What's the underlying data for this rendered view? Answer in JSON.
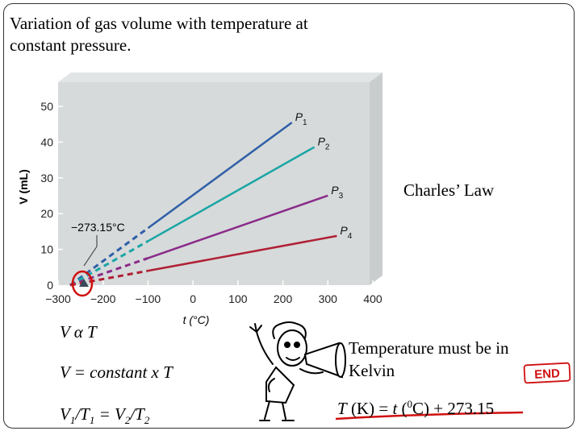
{
  "slide": {
    "title": "Variation of gas volume with temperature at constant pressure.",
    "law_label": "Charles’ Law",
    "proportionality": "V α T",
    "constant_form": "V = constant x T",
    "ratio_form": {
      "v1": "V",
      "s1": "1",
      "slash1": "/T",
      "s2": "1",
      "eq": " = V",
      "s3": "2",
      "slash2": "/T",
      "s4": "2"
    },
    "note": "Temperature must be in Kelvin",
    "conversion": {
      "left": "T",
      "unit": " (K) = ",
      "t": "t",
      "paren": " (",
      "sup": "0",
      "right": "C) + 273.15"
    },
    "end_stamp": "END"
  },
  "chart_data": {
    "type": "line",
    "xlabel": "t (°C)",
    "ylabel": "V (mL)",
    "xlim": [
      -300,
      400
    ],
    "ylim": [
      0,
      50
    ],
    "xticks": [
      -300,
      -200,
      -100,
      0,
      100,
      200,
      300,
      400
    ],
    "yticks": [
      0,
      10,
      20,
      30,
      40,
      50
    ],
    "xtick_labels": [
      "−300",
      "−200",
      "−100",
      "0",
      "100",
      "200",
      "300",
      "400"
    ],
    "ytick_labels": [
      "0",
      "10",
      "20",
      "30",
      "40",
      "50"
    ],
    "grid": true,
    "annotation": "−273.15°C",
    "absolute_zero": -273.15,
    "series": [
      {
        "name": "P1",
        "label_main": "P",
        "label_sub": "1",
        "color": "#2f5fa8",
        "x_start": -273.15,
        "x_extrap_end": -100,
        "x_end": 220,
        "slope": 0.0922
      },
      {
        "name": "P2",
        "label_main": "P",
        "label_sub": "2",
        "color": "#1aa5a5",
        "x_start": -273.15,
        "x_extrap_end": -100,
        "x_end": 270,
        "slope": 0.0711
      },
      {
        "name": "P3",
        "label_main": "P",
        "label_sub": "3",
        "color": "#8a2a8a",
        "x_start": -273.15,
        "x_extrap_end": -100,
        "x_end": 300,
        "slope": 0.0437
      },
      {
        "name": "P4",
        "label_main": "P",
        "label_sub": "4",
        "color": "#b02036",
        "x_start": -273.15,
        "x_extrap_end": -100,
        "x_end": 320,
        "slope": 0.0232
      }
    ]
  }
}
